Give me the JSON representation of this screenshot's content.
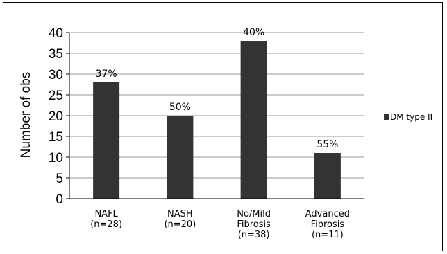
{
  "chart_data": {
    "type": "bar",
    "title": "",
    "xlabel": "",
    "ylabel": "Number of obs",
    "ylim": [
      0,
      40
    ],
    "yticks": [
      0,
      5,
      10,
      15,
      20,
      25,
      30,
      35,
      40
    ],
    "grid": true,
    "legend_position": "right",
    "categories": [
      [
        "NAFL",
        "(n=28)"
      ],
      [
        "NASH",
        "(n=20)"
      ],
      [
        "No/Mild",
        "Fibrosis",
        "(n=38)"
      ],
      [
        "Advanced",
        "Fibrosis",
        "(n=11)"
      ]
    ],
    "series": [
      {
        "name": "DM type II",
        "color": "#333333",
        "values": [
          28,
          20,
          38,
          11
        ],
        "labels": [
          "37%",
          "50%",
          "40%",
          "55%"
        ]
      }
    ]
  }
}
